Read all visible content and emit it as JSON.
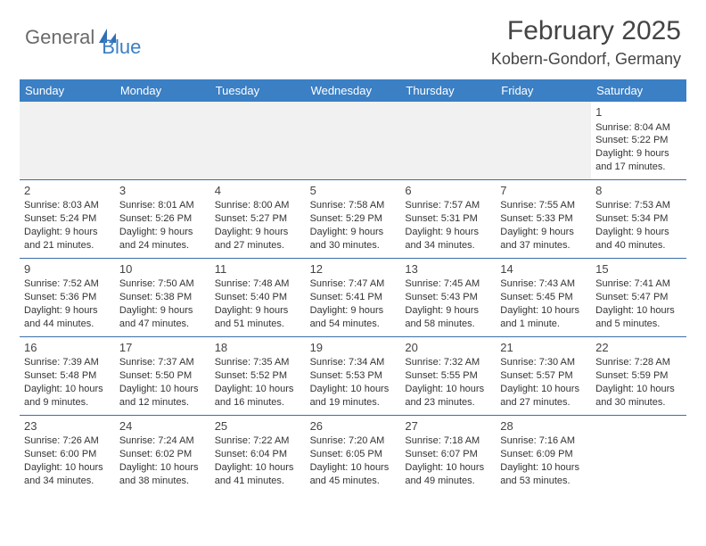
{
  "logo": {
    "part1": "General",
    "part2": "Blue"
  },
  "title": "February 2025",
  "location": "Kobern-Gondorf, Germany",
  "colors": {
    "header_bg": "#3b7fc4",
    "header_text": "#ffffff",
    "row_border": "#3b6fa8",
    "text": "#333333",
    "empty_bg": "#f1f1f1"
  },
  "weekdays": [
    "Sunday",
    "Monday",
    "Tuesday",
    "Wednesday",
    "Thursday",
    "Friday",
    "Saturday"
  ],
  "weeks": [
    [
      {
        "empty": true
      },
      {
        "empty": true
      },
      {
        "empty": true
      },
      {
        "empty": true
      },
      {
        "empty": true
      },
      {
        "empty": true
      },
      {
        "day": "1",
        "sunrise": "Sunrise: 8:04 AM",
        "sunset": "Sunset: 5:22 PM",
        "daylight1": "Daylight: 9 hours",
        "daylight2": "and 17 minutes."
      }
    ],
    [
      {
        "day": "2",
        "sunrise": "Sunrise: 8:03 AM",
        "sunset": "Sunset: 5:24 PM",
        "daylight1": "Daylight: 9 hours",
        "daylight2": "and 21 minutes."
      },
      {
        "day": "3",
        "sunrise": "Sunrise: 8:01 AM",
        "sunset": "Sunset: 5:26 PM",
        "daylight1": "Daylight: 9 hours",
        "daylight2": "and 24 minutes."
      },
      {
        "day": "4",
        "sunrise": "Sunrise: 8:00 AM",
        "sunset": "Sunset: 5:27 PM",
        "daylight1": "Daylight: 9 hours",
        "daylight2": "and 27 minutes."
      },
      {
        "day": "5",
        "sunrise": "Sunrise: 7:58 AM",
        "sunset": "Sunset: 5:29 PM",
        "daylight1": "Daylight: 9 hours",
        "daylight2": "and 30 minutes."
      },
      {
        "day": "6",
        "sunrise": "Sunrise: 7:57 AM",
        "sunset": "Sunset: 5:31 PM",
        "daylight1": "Daylight: 9 hours",
        "daylight2": "and 34 minutes."
      },
      {
        "day": "7",
        "sunrise": "Sunrise: 7:55 AM",
        "sunset": "Sunset: 5:33 PM",
        "daylight1": "Daylight: 9 hours",
        "daylight2": "and 37 minutes."
      },
      {
        "day": "8",
        "sunrise": "Sunrise: 7:53 AM",
        "sunset": "Sunset: 5:34 PM",
        "daylight1": "Daylight: 9 hours",
        "daylight2": "and 40 minutes."
      }
    ],
    [
      {
        "day": "9",
        "sunrise": "Sunrise: 7:52 AM",
        "sunset": "Sunset: 5:36 PM",
        "daylight1": "Daylight: 9 hours",
        "daylight2": "and 44 minutes."
      },
      {
        "day": "10",
        "sunrise": "Sunrise: 7:50 AM",
        "sunset": "Sunset: 5:38 PM",
        "daylight1": "Daylight: 9 hours",
        "daylight2": "and 47 minutes."
      },
      {
        "day": "11",
        "sunrise": "Sunrise: 7:48 AM",
        "sunset": "Sunset: 5:40 PM",
        "daylight1": "Daylight: 9 hours",
        "daylight2": "and 51 minutes."
      },
      {
        "day": "12",
        "sunrise": "Sunrise: 7:47 AM",
        "sunset": "Sunset: 5:41 PM",
        "daylight1": "Daylight: 9 hours",
        "daylight2": "and 54 minutes."
      },
      {
        "day": "13",
        "sunrise": "Sunrise: 7:45 AM",
        "sunset": "Sunset: 5:43 PM",
        "daylight1": "Daylight: 9 hours",
        "daylight2": "and 58 minutes."
      },
      {
        "day": "14",
        "sunrise": "Sunrise: 7:43 AM",
        "sunset": "Sunset: 5:45 PM",
        "daylight1": "Daylight: 10 hours",
        "daylight2": "and 1 minute."
      },
      {
        "day": "15",
        "sunrise": "Sunrise: 7:41 AM",
        "sunset": "Sunset: 5:47 PM",
        "daylight1": "Daylight: 10 hours",
        "daylight2": "and 5 minutes."
      }
    ],
    [
      {
        "day": "16",
        "sunrise": "Sunrise: 7:39 AM",
        "sunset": "Sunset: 5:48 PM",
        "daylight1": "Daylight: 10 hours",
        "daylight2": "and 9 minutes."
      },
      {
        "day": "17",
        "sunrise": "Sunrise: 7:37 AM",
        "sunset": "Sunset: 5:50 PM",
        "daylight1": "Daylight: 10 hours",
        "daylight2": "and 12 minutes."
      },
      {
        "day": "18",
        "sunrise": "Sunrise: 7:35 AM",
        "sunset": "Sunset: 5:52 PM",
        "daylight1": "Daylight: 10 hours",
        "daylight2": "and 16 minutes."
      },
      {
        "day": "19",
        "sunrise": "Sunrise: 7:34 AM",
        "sunset": "Sunset: 5:53 PM",
        "daylight1": "Daylight: 10 hours",
        "daylight2": "and 19 minutes."
      },
      {
        "day": "20",
        "sunrise": "Sunrise: 7:32 AM",
        "sunset": "Sunset: 5:55 PM",
        "daylight1": "Daylight: 10 hours",
        "daylight2": "and 23 minutes."
      },
      {
        "day": "21",
        "sunrise": "Sunrise: 7:30 AM",
        "sunset": "Sunset: 5:57 PM",
        "daylight1": "Daylight: 10 hours",
        "daylight2": "and 27 minutes."
      },
      {
        "day": "22",
        "sunrise": "Sunrise: 7:28 AM",
        "sunset": "Sunset: 5:59 PM",
        "daylight1": "Daylight: 10 hours",
        "daylight2": "and 30 minutes."
      }
    ],
    [
      {
        "day": "23",
        "sunrise": "Sunrise: 7:26 AM",
        "sunset": "Sunset: 6:00 PM",
        "daylight1": "Daylight: 10 hours",
        "daylight2": "and 34 minutes."
      },
      {
        "day": "24",
        "sunrise": "Sunrise: 7:24 AM",
        "sunset": "Sunset: 6:02 PM",
        "daylight1": "Daylight: 10 hours",
        "daylight2": "and 38 minutes."
      },
      {
        "day": "25",
        "sunrise": "Sunrise: 7:22 AM",
        "sunset": "Sunset: 6:04 PM",
        "daylight1": "Daylight: 10 hours",
        "daylight2": "and 41 minutes."
      },
      {
        "day": "26",
        "sunrise": "Sunrise: 7:20 AM",
        "sunset": "Sunset: 6:05 PM",
        "daylight1": "Daylight: 10 hours",
        "daylight2": "and 45 minutes."
      },
      {
        "day": "27",
        "sunrise": "Sunrise: 7:18 AM",
        "sunset": "Sunset: 6:07 PM",
        "daylight1": "Daylight: 10 hours",
        "daylight2": "and 49 minutes."
      },
      {
        "day": "28",
        "sunrise": "Sunrise: 7:16 AM",
        "sunset": "Sunset: 6:09 PM",
        "daylight1": "Daylight: 10 hours",
        "daylight2": "and 53 minutes."
      },
      {
        "empty": true,
        "plain": true
      }
    ]
  ]
}
